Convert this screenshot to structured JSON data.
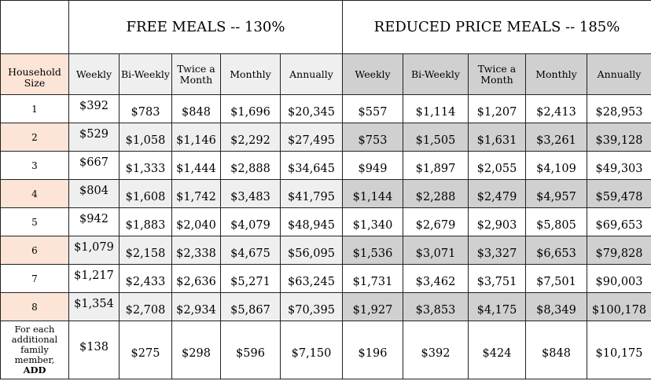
{
  "header": {
    "free_title": "FREE MEALS -- 130%",
    "reduced_title": "REDUCED PRICE MEALS -- 185%"
  },
  "columns": {
    "household": [
      "Household",
      "Size"
    ],
    "periods": [
      "Weekly",
      "Bi-Weekly",
      "Twice a Month",
      "Monthly",
      "Annually"
    ]
  },
  "rows": [
    {
      "size": "1",
      "free": [
        "$392",
        "$783",
        "$848",
        "$1,696",
        "$20,345"
      ],
      "reduced": [
        "$557",
        "$1,114",
        "$1,207",
        "$2,413",
        "$28,953"
      ]
    },
    {
      "size": "2",
      "free": [
        "$529",
        "$1,058",
        "$1,146",
        "$2,292",
        "$27,495"
      ],
      "reduced": [
        "$753",
        "$1,505",
        "$1,631",
        "$3,261",
        "$39,128"
      ]
    },
    {
      "size": "3",
      "free": [
        "$667",
        "$1,333",
        "$1,444",
        "$2,888",
        "$34,645"
      ],
      "reduced": [
        "$949",
        "$1,897",
        "$2,055",
        "$4,109",
        "$49,303"
      ]
    },
    {
      "size": "4",
      "free": [
        "$804",
        "$1,608",
        "$1,742",
        "$3,483",
        "$41,795"
      ],
      "reduced": [
        "$1,144",
        "$2,288",
        "$2,479",
        "$4,957",
        "$59,478"
      ]
    },
    {
      "size": "5",
      "free": [
        "$942",
        "$1,883",
        "$2,040",
        "$4,079",
        "$48,945"
      ],
      "reduced": [
        "$1,340",
        "$2,679",
        "$2,903",
        "$5,805",
        "$69,653"
      ]
    },
    {
      "size": "6",
      "free": [
        "$1,079",
        "$2,158",
        "$2,338",
        "$4,675",
        "$56,095"
      ],
      "reduced": [
        "$1,536",
        "$3,071",
        "$3,327",
        "$6,653",
        "$79,828"
      ]
    },
    {
      "size": "7",
      "free": [
        "$1,217",
        "$2,433",
        "$2,636",
        "$5,271",
        "$63,245"
      ],
      "reduced": [
        "$1,731",
        "$3,462",
        "$3,751",
        "$7,501",
        "$90,003"
      ]
    },
    {
      "size": "8",
      "free": [
        "$1,354",
        "$2,708",
        "$2,934",
        "$5,867",
        "$70,395"
      ],
      "reduced": [
        "$1,927",
        "$3,853",
        "$4,175",
        "$8,349",
        "$100,178"
      ]
    }
  ],
  "additional": {
    "label_lines": [
      "For each",
      "additional",
      "family",
      "member,"
    ],
    "label_bold": "ADD",
    "free": [
      "$138",
      "$275",
      "$298",
      "$596",
      "$7,150"
    ],
    "reduced": [
      "$196",
      "$392",
      "$424",
      "$848",
      "$10,175"
    ]
  }
}
